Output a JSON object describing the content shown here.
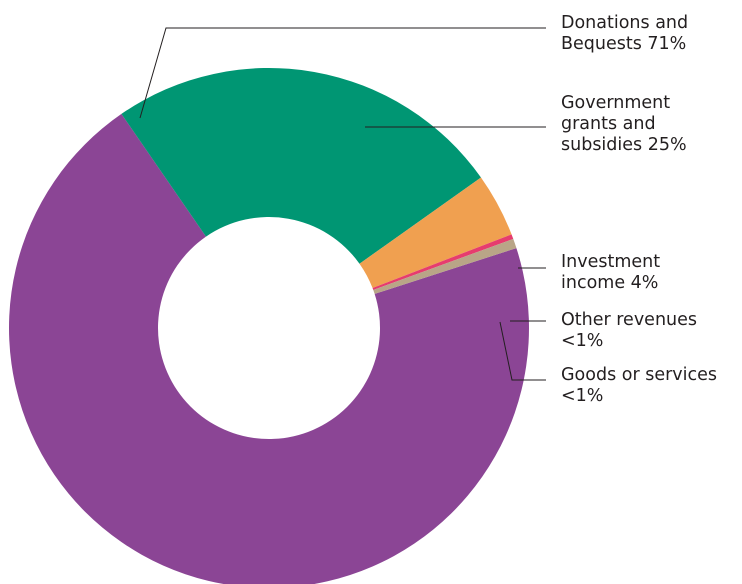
{
  "chart_data": {
    "type": "pie",
    "variant": "donut",
    "title": "",
    "segments": [
      {
        "name": "Donations and Bequests",
        "value": 71,
        "display": "71%",
        "label_lines": [
          "Donations and",
          "Bequests 71%"
        ],
        "color": "#8b4595"
      },
      {
        "name": "Government grants and subsidies",
        "value": 25,
        "display": "25%",
        "label_lines": [
          "Government",
          "grants and",
          "subsidies 25%"
        ],
        "color": "#009673"
      },
      {
        "name": "Investment income",
        "value": 4,
        "display": "4%",
        "label_lines": [
          "Investment",
          "income 4%"
        ],
        "color": "#f0a050"
      },
      {
        "name": "Other revenues",
        "value": 0.3,
        "display": "<1%",
        "label_lines": [
          "Other revenues",
          "<1%"
        ],
        "color": "#e63c6e"
      },
      {
        "name": "Goods or services",
        "value": 0.6,
        "display": "<1%",
        "label_lines": [
          "Goods or services",
          "<1%"
        ],
        "color": "#b9a587"
      }
    ],
    "legend": "none",
    "leader_color": "#231f20"
  }
}
